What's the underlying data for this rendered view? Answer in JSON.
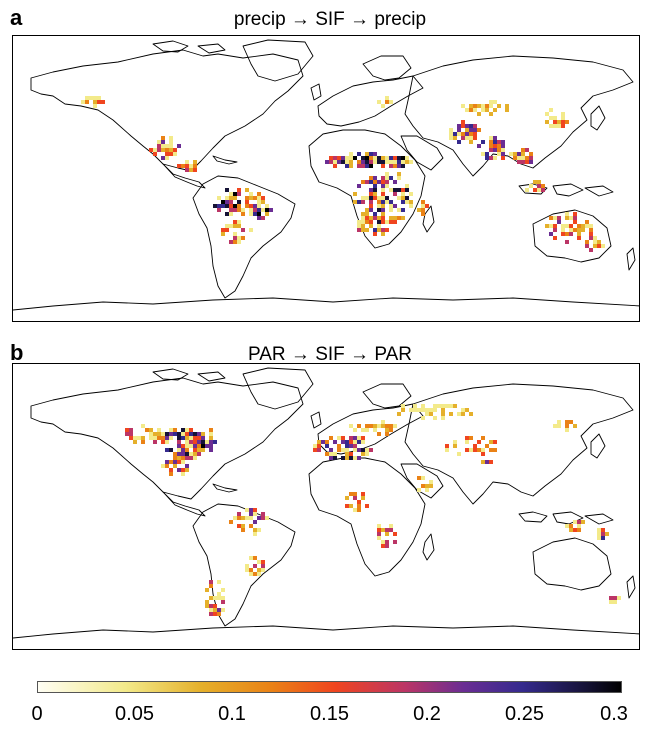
{
  "panels": [
    {
      "letter": "a",
      "title": "precip → SIF → precip"
    },
    {
      "letter": "b",
      "title": "PAR → SIF → PAR"
    }
  ],
  "colorbar": {
    "min": 0,
    "max": 0.3,
    "ticks": [
      "0",
      "0.05",
      "0.1",
      "0.15",
      "0.2",
      "0.25",
      "0.3"
    ],
    "colors": [
      "#fffef4",
      "#f3ea8a",
      "#e5b02b",
      "#ea8216",
      "#f0451f",
      "#bb3566",
      "#6a2d93",
      "#352a8e",
      "#151236",
      "#000000"
    ]
  },
  "colors": {
    "coastline": "#000000",
    "frame": "#000000"
  }
}
